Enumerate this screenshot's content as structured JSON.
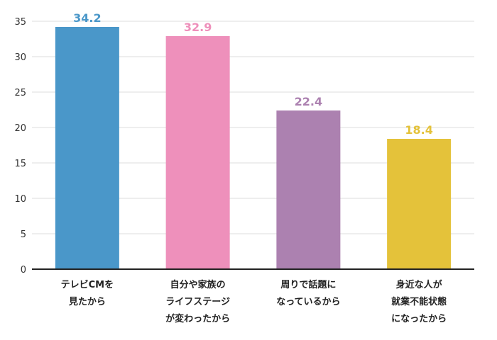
{
  "chart_data": {
    "type": "bar",
    "title": "",
    "xlabel": "",
    "ylabel": "",
    "ylim": [
      0,
      35
    ],
    "yticks": [
      0,
      5,
      10,
      15,
      20,
      25,
      30,
      35
    ],
    "grid": true,
    "categories": [
      [
        "テレビCMを",
        "見たから"
      ],
      [
        "自分や家族の",
        "ライフステージ",
        "が変わったから"
      ],
      [
        "周りで話題に",
        "なっているから"
      ],
      [
        "身近な人が",
        "就業不能状態",
        "になったから"
      ]
    ],
    "values": [
      34.2,
      32.9,
      22.4,
      18.4
    ],
    "value_labels": [
      "34.2",
      "32.9",
      "22.4",
      "18.4"
    ],
    "bar_colors": [
      "#4a97c9",
      "#ee90bb",
      "#ac81b0",
      "#e4c23a"
    ],
    "label_colors": [
      "#4a97c9",
      "#ee90bb",
      "#ac81b0",
      "#e4c23a"
    ]
  }
}
